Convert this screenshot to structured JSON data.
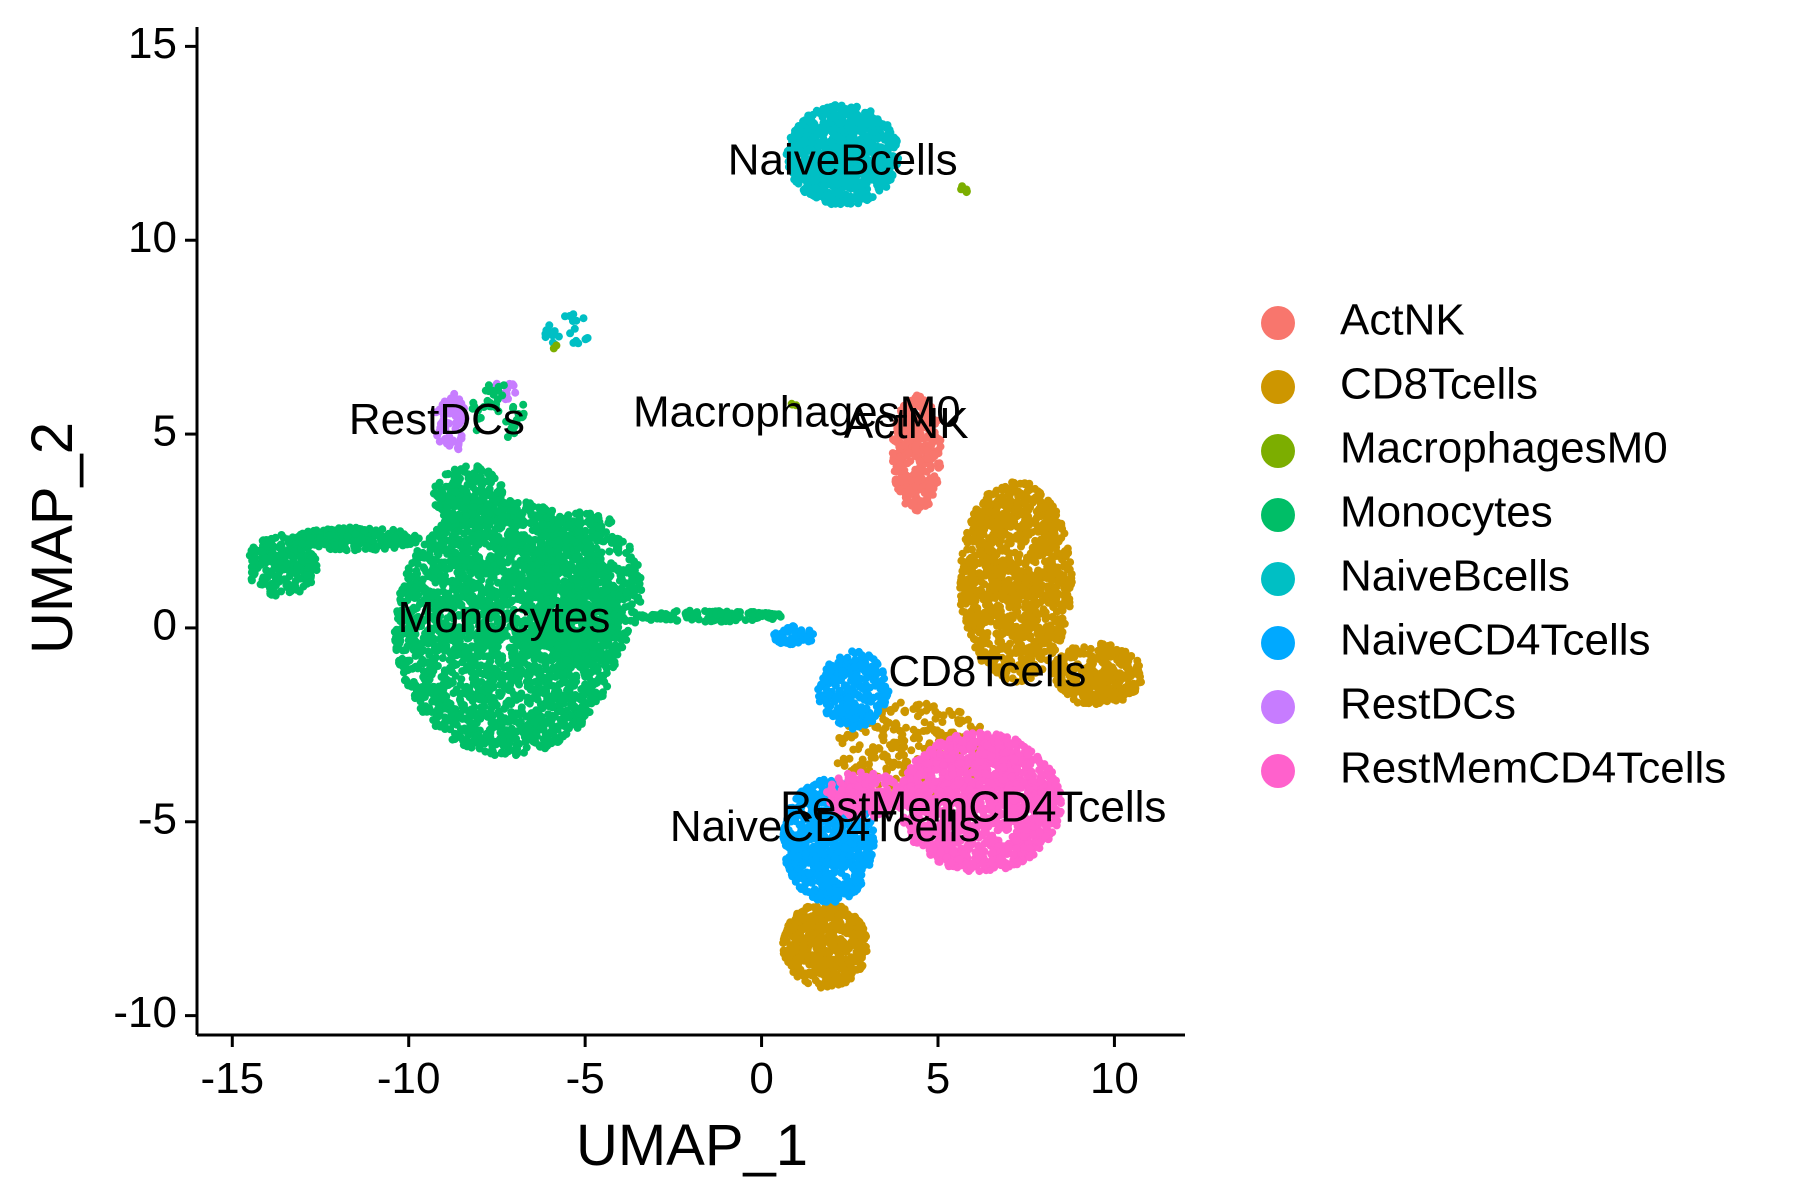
{
  "chart_data": {
    "type": "scatter",
    "xlabel": "UMAP_1",
    "ylabel": "UMAP_2",
    "xlim": [
      -16,
      12
    ],
    "ylim": [
      -10.5,
      15.5
    ],
    "x_ticks": [
      -15,
      -10,
      -5,
      0,
      5,
      10
    ],
    "y_ticks": [
      -10,
      -5,
      0,
      5,
      10,
      15
    ],
    "grid": false,
    "legend_position": "right",
    "series": [
      {
        "name": "ActNK",
        "color": "#F8766D"
      },
      {
        "name": "CD8Tcells",
        "color": "#CD9600"
      },
      {
        "name": "MacrophagesM0",
        "color": "#7CAE00"
      },
      {
        "name": "Monocytes",
        "color": "#00BE67"
      },
      {
        "name": "NaiveBcells",
        "color": "#00BFC4"
      },
      {
        "name": "NaiveCD4Tcells",
        "color": "#00A9FF"
      },
      {
        "name": "RestDCs",
        "color": "#C77CFF"
      },
      {
        "name": "RestMemCD4Tcells",
        "color": "#FF61CC"
      }
    ],
    "regions": [
      {
        "series": "NaiveBcells",
        "cx": 2.3,
        "cy": 12.2,
        "rx": 1.6,
        "ry": 1.3,
        "n": 900
      },
      {
        "series": "NaiveBcells",
        "cx": -5.5,
        "cy": 7.7,
        "rx": 0.7,
        "ry": 0.5,
        "n": 25
      },
      {
        "series": "MacrophagesM0",
        "cx": 5.7,
        "cy": 11.3,
        "rx": 0.15,
        "ry": 0.1,
        "n": 6
      },
      {
        "series": "MacrophagesM0",
        "cx": 0.9,
        "cy": 5.7,
        "rx": 0.1,
        "ry": 0.1,
        "n": 3
      },
      {
        "series": "MacrophagesM0",
        "cx": -5.9,
        "cy": 7.3,
        "rx": 0.1,
        "ry": 0.1,
        "n": 2
      },
      {
        "series": "RestDCs",
        "cx": -8.8,
        "cy": 5.3,
        "rx": 0.45,
        "ry": 0.8,
        "n": 70
      },
      {
        "series": "RestDCs",
        "cx": -7.3,
        "cy": 6.1,
        "rx": 0.35,
        "ry": 0.3,
        "n": 15
      },
      {
        "series": "Monocytes",
        "cx": -7.2,
        "cy": 0.0,
        "rx": 3.2,
        "ry": 3.3,
        "n": 2600
      },
      {
        "series": "Monocytes",
        "cx": -5.0,
        "cy": 1.0,
        "rx": 1.6,
        "ry": 2.0,
        "n": 500
      },
      {
        "series": "Monocytes",
        "cx": -13.6,
        "cy": 1.6,
        "rx": 1.0,
        "ry": 0.8,
        "n": 200
      },
      {
        "series": "Monocytes",
        "cx": -11.5,
        "cy": 2.3,
        "rx": 1.8,
        "ry": 0.3,
        "n": 200
      },
      {
        "series": "Monocytes",
        "cx": -8.3,
        "cy": 3.4,
        "rx": 1.0,
        "ry": 0.8,
        "n": 200
      },
      {
        "series": "Monocytes",
        "cx": -7.5,
        "cy": 5.6,
        "rx": 0.8,
        "ry": 0.8,
        "n": 40
      },
      {
        "series": "Monocytes",
        "cx": -1.5,
        "cy": 0.3,
        "rx": 2.2,
        "ry": 0.15,
        "n": 140
      },
      {
        "series": "ActNK",
        "cx": 4.4,
        "cy": 4.5,
        "rx": 0.7,
        "ry": 1.5,
        "n": 350
      },
      {
        "series": "CD8Tcells",
        "cx": 7.2,
        "cy": 1.2,
        "rx": 1.6,
        "ry": 2.6,
        "n": 1100
      },
      {
        "series": "CD8Tcells",
        "cx": 9.5,
        "cy": -1.2,
        "rx": 1.3,
        "ry": 0.8,
        "n": 300
      },
      {
        "series": "CD8Tcells",
        "cx": 4.3,
        "cy": -3.2,
        "rx": 2.2,
        "ry": 1.3,
        "n": 300
      },
      {
        "series": "CD8Tcells",
        "cx": 1.8,
        "cy": -8.2,
        "rx": 1.2,
        "ry": 1.1,
        "n": 500
      },
      {
        "series": "NaiveCD4Tcells",
        "cx": 2.6,
        "cy": -1.6,
        "rx": 1.0,
        "ry": 1.0,
        "n": 250
      },
      {
        "series": "NaiveCD4Tcells",
        "cx": 1.9,
        "cy": -5.5,
        "rx": 1.3,
        "ry": 1.6,
        "n": 700
      },
      {
        "series": "NaiveCD4Tcells",
        "cx": 0.9,
        "cy": -0.2,
        "rx": 0.6,
        "ry": 0.25,
        "n": 50
      },
      {
        "series": "RestMemCD4Tcells",
        "cx": 6.2,
        "cy": -4.5,
        "rx": 2.3,
        "ry": 1.8,
        "n": 1400
      },
      {
        "series": "RestMemCD4Tcells",
        "cx": 2.9,
        "cy": -4.3,
        "rx": 1.1,
        "ry": 0.6,
        "n": 200
      }
    ],
    "cluster_labels": [
      {
        "text": "NaiveBcells",
        "x": 2.3,
        "y": 12.0
      },
      {
        "text": "MacrophagesM0",
        "x": 1.0,
        "y": 5.5
      },
      {
        "text": "ActNK",
        "x": 4.1,
        "y": 5.2
      },
      {
        "text": "RestDCs",
        "x": -9.2,
        "y": 5.3
      },
      {
        "text": "Monocytes",
        "x": -7.3,
        "y": 0.2
      },
      {
        "text": "CD8Tcells",
        "x": 6.4,
        "y": -1.2
      },
      {
        "text": "RestMemCD4Tcells",
        "x": 6.0,
        "y": -4.7
      },
      {
        "text": "NaiveCD4Tcells",
        "x": 1.8,
        "y": -5.2
      }
    ]
  }
}
